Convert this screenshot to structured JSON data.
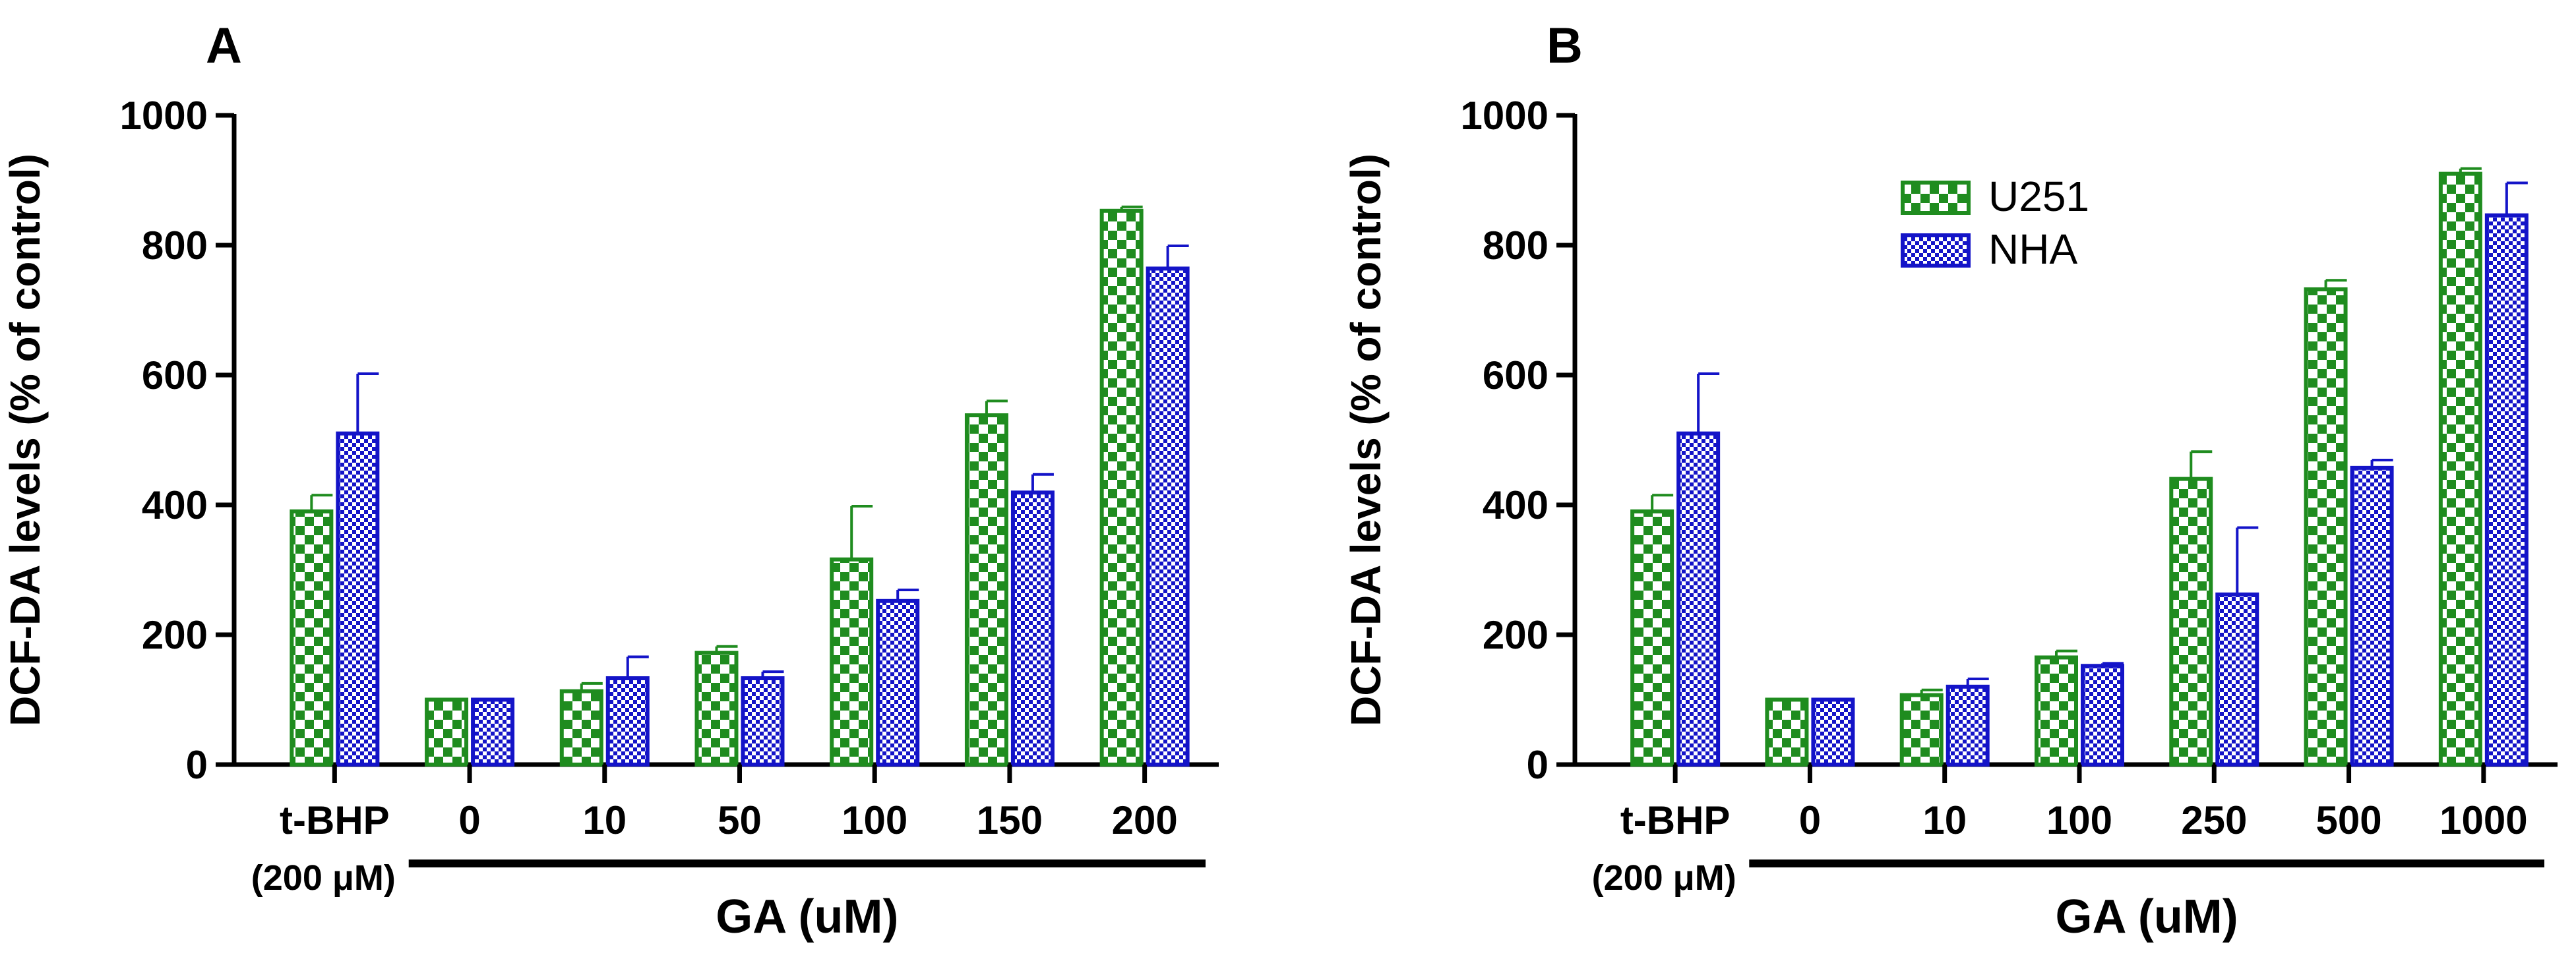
{
  "colors": {
    "u251": "#1f8c1f",
    "nha": "#1414c8",
    "axis": "#000000"
  },
  "legend": {
    "items": [
      "U251",
      "NHA"
    ],
    "placement": "top-left of panel B plot area"
  },
  "chart_data": [
    {
      "type": "bar",
      "panel_label": "A",
      "ylabel": "DCF-DA levels (% of control)",
      "xlabel": "GA (uM)",
      "ylim": [
        0,
        1000
      ],
      "yticks": [
        "0",
        "200",
        "400",
        "600",
        "800",
        "1000"
      ],
      "categories": [
        "t-BHP",
        "0",
        "10",
        "50",
        "100",
        "150",
        "200"
      ],
      "category_sublabel": "(200 μM)",
      "series": [
        {
          "name": "U251",
          "values": [
            390,
            100,
            113,
            172,
            316,
            538,
            853
          ],
          "errors": [
            25,
            0,
            12,
            10,
            82,
            22,
            6
          ]
        },
        {
          "name": "NHA",
          "values": [
            510,
            100,
            133,
            133,
            252,
            419,
            764
          ],
          "errors": [
            92,
            0,
            33,
            10,
            17,
            28,
            35
          ]
        }
      ]
    },
    {
      "type": "bar",
      "panel_label": "B",
      "ylabel": "DCF-DA levels (% of control)",
      "xlabel": "GA (uM)",
      "ylim": [
        0,
        1000
      ],
      "yticks": [
        "0",
        "200",
        "400",
        "600",
        "800",
        "1000"
      ],
      "categories": [
        "t-BHP",
        "0",
        "10",
        "100",
        "250",
        "500",
        "1000"
      ],
      "category_sublabel": "(200 μM)",
      "series": [
        {
          "name": "U251",
          "values": [
            390,
            100,
            107,
            165,
            440,
            732,
            910
          ],
          "errors": [
            25,
            0,
            8,
            10,
            42,
            14,
            8
          ]
        },
        {
          "name": "NHA",
          "values": [
            510,
            100,
            120,
            152,
            262,
            457,
            846
          ],
          "errors": [
            92,
            0,
            12,
            4,
            103,
            12,
            50
          ]
        }
      ]
    }
  ]
}
